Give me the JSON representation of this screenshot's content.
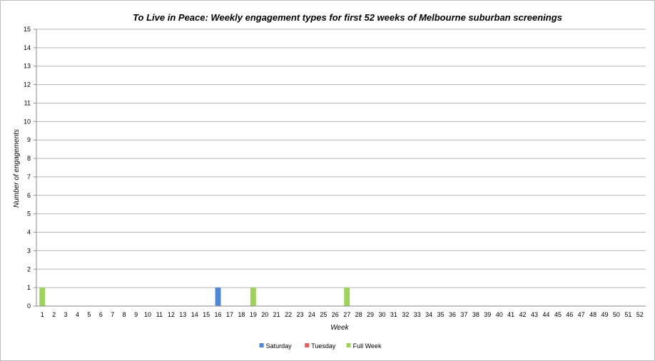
{
  "chart_data": {
    "type": "bar",
    "stacked": true,
    "title": "To Live in Peace: Weekly engagement types for first 52 weeks of Melbourne suburban screenings",
    "xlabel": "Week",
    "ylabel": "Number of engagements",
    "ylim": [
      0,
      15
    ],
    "ytick_step": 1,
    "grid": true,
    "legend_position": "bottom",
    "categories": [
      "1",
      "2",
      "3",
      "4",
      "5",
      "6",
      "7",
      "8",
      "9",
      "10",
      "11",
      "12",
      "13",
      "14",
      "15",
      "16",
      "17",
      "18",
      "19",
      "20",
      "21",
      "22",
      "23",
      "24",
      "25",
      "26",
      "27",
      "28",
      "29",
      "30",
      "31",
      "32",
      "33",
      "34",
      "35",
      "36",
      "37",
      "38",
      "39",
      "40",
      "41",
      "42",
      "43",
      "44",
      "45",
      "46",
      "47",
      "48",
      "49",
      "50",
      "51",
      "52"
    ],
    "series": [
      {
        "name": "Saturday",
        "color": "#4f86d6",
        "values": [
          0,
          0,
          0,
          0,
          0,
          0,
          0,
          0,
          0,
          0,
          0,
          0,
          0,
          0,
          0,
          1,
          0,
          0,
          0,
          0,
          0,
          0,
          0,
          0,
          0,
          0,
          0,
          0,
          0,
          0,
          0,
          0,
          0,
          0,
          0,
          0,
          0,
          0,
          0,
          0,
          0,
          0,
          0,
          0,
          0,
          0,
          0,
          0,
          0,
          0,
          0,
          0
        ]
      },
      {
        "name": "Tuesday",
        "color": "#e8605c",
        "values": [
          0,
          0,
          0,
          0,
          0,
          0,
          0,
          0,
          0,
          0,
          0,
          0,
          0,
          0,
          0,
          0,
          0,
          0,
          0,
          0,
          0,
          0,
          0,
          0,
          0,
          0,
          0,
          0,
          0,
          0,
          0,
          0,
          0,
          0,
          0,
          0,
          0,
          0,
          0,
          0,
          0,
          0,
          0,
          0,
          0,
          0,
          0,
          0,
          0,
          0,
          0,
          0
        ]
      },
      {
        "name": "Full Week",
        "color": "#9ed35a",
        "values": [
          1,
          0,
          0,
          0,
          0,
          0,
          0,
          0,
          0,
          0,
          0,
          0,
          0,
          0,
          0,
          0,
          0,
          0,
          1,
          0,
          0,
          0,
          0,
          0,
          0,
          0,
          1,
          0,
          0,
          0,
          0,
          0,
          0,
          0,
          0,
          0,
          0,
          0,
          0,
          0,
          0,
          0,
          0,
          0,
          0,
          0,
          0,
          0,
          0,
          0,
          0,
          0
        ]
      }
    ]
  }
}
